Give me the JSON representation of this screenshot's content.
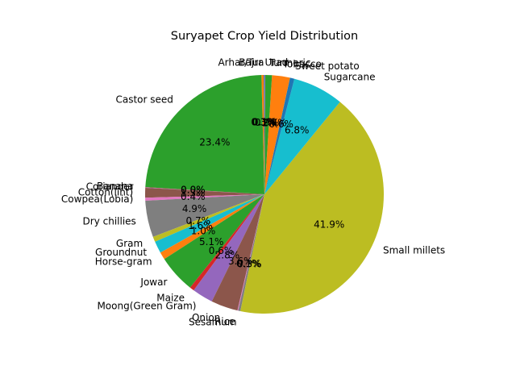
{
  "chart_data": {
    "type": "pie",
    "title": "Suryapet Crop Yield Distribution",
    "start_angle_deg": 90,
    "direction": "counterclockwise",
    "slices": [
      {
        "label": "Bajra",
        "value": 0.1,
        "pct_label": "0.1%",
        "color": "#1f77b4"
      },
      {
        "label": "Arhar/Tur",
        "value": 0.3,
        "pct_label": "0.3%",
        "color": "#ff7f0e"
      },
      {
        "label": "Castor seed",
        "value": 23.4,
        "pct_label": "23.4%",
        "color": "#2ca02c"
      },
      {
        "label": "Banana",
        "value": 0.05,
        "pct_label": "0.0%",
        "color": "#d62728"
      },
      {
        "label": "Coriander",
        "value": 0.05,
        "pct_label": "0.0%",
        "color": "#9467bd"
      },
      {
        "label": "Cotton(lint)",
        "value": 1.3,
        "pct_label": "1.3%",
        "color": "#8c564b"
      },
      {
        "label": "Cowpea(Lobia)",
        "value": 0.4,
        "pct_label": "0.4%",
        "color": "#e377c2"
      },
      {
        "label": "Dry chillies",
        "value": 4.9,
        "pct_label": "4.9%",
        "color": "#7f7f7f"
      },
      {
        "label": "Gram",
        "value": 0.7,
        "pct_label": "0.7%",
        "color": "#bcbd22"
      },
      {
        "label": "Groundnut",
        "value": 1.6,
        "pct_label": "1.6%",
        "color": "#17becf"
      },
      {
        "label": "Horse-gram",
        "value": 1.0,
        "pct_label": "1.0%",
        "color": "#ff7f0e"
      },
      {
        "label": "Jowar",
        "value": 5.1,
        "pct_label": "5.1%",
        "color": "#2ca02c"
      },
      {
        "label": "Maize",
        "value": 0.6,
        "pct_label": "0.6%",
        "color": "#d62728"
      },
      {
        "label": "Moong(Green Gram)",
        "value": 2.8,
        "pct_label": "2.8%",
        "color": "#9467bd"
      },
      {
        "label": "Onion",
        "value": 3.6,
        "pct_label": "3.6%",
        "color": "#8c564b"
      },
      {
        "label": "Rice",
        "value": 0.1,
        "pct_label": "0.1%",
        "color": "#e377c2"
      },
      {
        "label": "Sesamum",
        "value": 0.3,
        "pct_label": "0.3%",
        "color": "#7f7f7f"
      },
      {
        "label": "Small millets",
        "value": 41.9,
        "pct_label": "41.9%",
        "color": "#bcbd22"
      },
      {
        "label": "Sugarcane",
        "value": 6.8,
        "pct_label": "6.8%",
        "color": "#17becf"
      },
      {
        "label": "Sweet potato",
        "value": 0.6,
        "pct_label": "0.6%",
        "color": "#1f77b4"
      },
      {
        "label": "Tobacco",
        "value": 2.4,
        "pct_label": "2.4%",
        "color": "#ff7f0e"
      },
      {
        "label": "Turmeric",
        "value": 0.9,
        "pct_label": "0.9%",
        "color": "#2ca02c"
      },
      {
        "label": "Urad",
        "value": 0.1,
        "pct_label": "0.1%",
        "color": "#9467bd"
      }
    ]
  }
}
